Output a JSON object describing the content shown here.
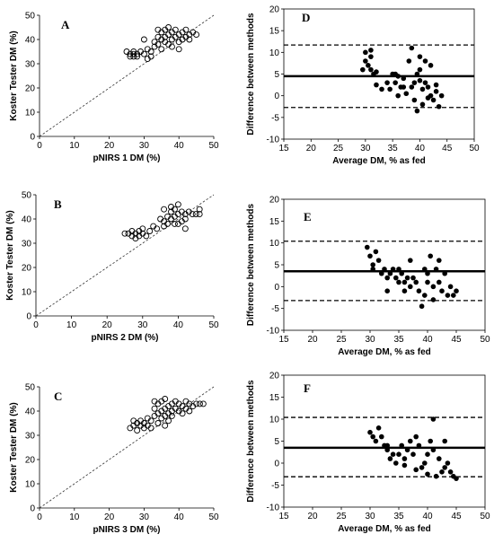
{
  "chart_data": [
    {
      "panel": "A",
      "type": "scatter",
      "xlabel": "pNIRS 1 DM (%)",
      "ylabel": "Koster Tester DM (%)",
      "xlim": [
        0,
        50
      ],
      "ylim": [
        0,
        50
      ],
      "xticks": [
        "0",
        "10",
        "20",
        "30",
        "40",
        "50"
      ],
      "yticks": [
        "0",
        "10",
        "20",
        "30",
        "40",
        "50"
      ],
      "marker": "open-circle",
      "reference_line": "1:1 dashed",
      "points": [
        [
          25,
          35
        ],
        [
          26,
          34
        ],
        [
          26,
          33
        ],
        [
          27,
          35
        ],
        [
          27,
          34
        ],
        [
          27,
          33
        ],
        [
          28,
          34
        ],
        [
          28,
          33
        ],
        [
          29,
          35
        ],
        [
          30,
          34
        ],
        [
          31,
          32
        ],
        [
          31,
          36
        ],
        [
          32,
          33
        ],
        [
          32,
          35
        ],
        [
          33,
          37
        ],
        [
          33,
          39
        ],
        [
          34,
          38
        ],
        [
          34,
          41
        ],
        [
          34,
          44
        ],
        [
          35,
          36
        ],
        [
          35,
          40
        ],
        [
          35,
          43
        ],
        [
          36,
          39
        ],
        [
          36,
          41
        ],
        [
          36,
          44
        ],
        [
          37,
          38
        ],
        [
          37,
          42
        ],
        [
          37,
          45
        ],
        [
          38,
          40
        ],
        [
          38,
          43
        ],
        [
          38,
          37
        ],
        [
          39,
          41
        ],
        [
          39,
          44
        ],
        [
          40,
          39
        ],
        [
          40,
          42
        ],
        [
          40,
          36
        ],
        [
          41,
          40
        ],
        [
          41,
          43
        ],
        [
          42,
          41
        ],
        [
          42,
          44
        ],
        [
          43,
          42
        ],
        [
          43,
          40
        ],
        [
          44,
          43
        ],
        [
          45,
          42
        ],
        [
          30,
          40
        ]
      ]
    },
    {
      "panel": "D",
      "type": "scatter",
      "xlabel": "Average DM, % as fed",
      "ylabel": "Difference between methods",
      "xlim": [
        15,
        50
      ],
      "ylim": [
        -10,
        20
      ],
      "xticks": [
        "15",
        "20",
        "25",
        "30",
        "35",
        "40",
        "45",
        "50"
      ],
      "yticks": [
        "-10",
        "-5",
        "0",
        "5",
        "10",
        "15",
        "20"
      ],
      "marker": "filled-circle",
      "mean_line": 4.5,
      "upper_limit": 11.7,
      "lower_limit": -2.7,
      "points": [
        [
          29.5,
          6
        ],
        [
          30,
          10
        ],
        [
          30,
          8
        ],
        [
          30.5,
          7
        ],
        [
          31,
          10.5
        ],
        [
          31,
          9
        ],
        [
          31,
          6
        ],
        [
          32,
          5.5
        ],
        [
          32,
          2.5
        ],
        [
          33,
          1.5
        ],
        [
          34,
          3
        ],
        [
          34.5,
          1.5
        ],
        [
          35,
          5
        ],
        [
          35.5,
          3
        ],
        [
          35.5,
          5
        ],
        [
          36,
          4.5
        ],
        [
          36.5,
          2
        ],
        [
          37,
          4
        ],
        [
          37.5,
          0.5
        ],
        [
          38,
          8
        ],
        [
          38.5,
          11
        ],
        [
          38.5,
          2
        ],
        [
          39,
          3
        ],
        [
          39,
          -1
        ],
        [
          39.5,
          5
        ],
        [
          39.5,
          -3.5
        ],
        [
          40,
          6
        ],
        [
          40,
          9
        ],
        [
          40.5,
          -2
        ],
        [
          40.5,
          1.5
        ],
        [
          41,
          3
        ],
        [
          41,
          8
        ],
        [
          41.5,
          -0.5
        ],
        [
          41.5,
          2
        ],
        [
          42,
          7
        ],
        [
          42,
          0
        ],
        [
          42.5,
          -1
        ],
        [
          43,
          1
        ],
        [
          43,
          2.5
        ],
        [
          43.5,
          -2.5
        ],
        [
          44,
          0
        ],
        [
          40,
          3.5
        ],
        [
          36,
          0
        ],
        [
          31.5,
          5
        ],
        [
          37,
          2
        ]
      ]
    },
    {
      "panel": "B",
      "type": "scatter",
      "xlabel": "pNIRS 2 DM (%)",
      "ylabel": "Koster Tester DM (%)",
      "xlim": [
        0,
        50
      ],
      "ylim": [
        0,
        50
      ],
      "xticks": [
        "0",
        "10",
        "20",
        "30",
        "40",
        "50"
      ],
      "yticks": [
        "0",
        "10",
        "20",
        "30",
        "40",
        "50"
      ],
      "marker": "open-circle",
      "reference_line": "1:1 dashed",
      "points": [
        [
          25,
          34
        ],
        [
          26,
          34
        ],
        [
          27,
          33
        ],
        [
          27,
          35
        ],
        [
          28,
          34
        ],
        [
          28,
          32
        ],
        [
          29,
          33
        ],
        [
          29,
          35
        ],
        [
          30,
          34
        ],
        [
          30,
          36
        ],
        [
          31,
          33
        ],
        [
          32,
          35
        ],
        [
          33,
          37
        ],
        [
          34,
          36
        ],
        [
          35,
          40
        ],
        [
          36,
          37
        ],
        [
          36,
          39
        ],
        [
          37,
          41
        ],
        [
          37,
          38
        ],
        [
          38,
          43
        ],
        [
          38,
          40
        ],
        [
          38,
          45
        ],
        [
          39,
          44
        ],
        [
          39,
          41
        ],
        [
          40,
          46
        ],
        [
          40,
          42
        ],
        [
          40,
          38
        ],
        [
          41,
          39
        ],
        [
          41,
          43
        ],
        [
          42,
          42
        ],
        [
          42,
          40
        ],
        [
          43,
          43
        ],
        [
          44,
          42
        ],
        [
          45,
          42
        ],
        [
          46,
          44
        ],
        [
          46,
          42
        ],
        [
          36,
          44
        ],
        [
          39,
          38
        ],
        [
          42,
          36
        ]
      ]
    },
    {
      "panel": "E",
      "type": "scatter",
      "xlabel": "Average DM, % as fed",
      "ylabel": "Difference between methods",
      "xlim": [
        15,
        50
      ],
      "ylim": [
        -10,
        20
      ],
      "xticks": [
        "15",
        "20",
        "25",
        "30",
        "35",
        "40",
        "45",
        "50"
      ],
      "yticks": [
        "-10",
        "-5",
        "0",
        "5",
        "10",
        "15",
        "20"
      ],
      "marker": "filled-circle",
      "mean_line": 3.5,
      "upper_limit": 10.4,
      "lower_limit": -3.2,
      "points": [
        [
          29.5,
          9
        ],
        [
          30,
          7
        ],
        [
          30.5,
          5
        ],
        [
          30.5,
          4
        ],
        [
          31,
          8
        ],
        [
          31.5,
          6
        ],
        [
          32,
          3
        ],
        [
          32.5,
          4
        ],
        [
          33,
          2
        ],
        [
          33.5,
          3
        ],
        [
          34,
          4
        ],
        [
          34.5,
          2
        ],
        [
          35,
          1
        ],
        [
          35,
          4
        ],
        [
          35.5,
          3
        ],
        [
          36,
          1
        ],
        [
          36.5,
          2
        ],
        [
          37,
          0
        ],
        [
          37,
          6
        ],
        [
          37.5,
          2
        ],
        [
          38,
          1
        ],
        [
          38.5,
          -1
        ],
        [
          39,
          -4.5
        ],
        [
          39.5,
          4
        ],
        [
          39.5,
          -2
        ],
        [
          40,
          3
        ],
        [
          40.5,
          7
        ],
        [
          41,
          -3
        ],
        [
          41,
          0
        ],
        [
          41.5,
          4
        ],
        [
          42,
          6
        ],
        [
          42,
          1
        ],
        [
          42.5,
          -1
        ],
        [
          43,
          3
        ],
        [
          43.5,
          -2
        ],
        [
          44,
          0
        ],
        [
          44.5,
          -2
        ],
        [
          45,
          -1
        ],
        [
          40,
          1
        ],
        [
          36,
          -1
        ],
        [
          33,
          -1
        ]
      ]
    },
    {
      "panel": "C",
      "type": "scatter",
      "xlabel": "pNIRS 3 DM (%)",
      "ylabel": "Koster Tester DM (%)",
      "xlim": [
        0,
        50
      ],
      "ylim": [
        0,
        50
      ],
      "xticks": [
        "0",
        "10",
        "20",
        "30",
        "40",
        "50"
      ],
      "yticks": [
        "0",
        "10",
        "20",
        "30",
        "40",
        "50"
      ],
      "marker": "open-circle",
      "reference_line": "1:1 dashed",
      "points": [
        [
          26,
          33
        ],
        [
          27,
          34
        ],
        [
          27,
          36
        ],
        [
          28,
          35
        ],
        [
          28,
          32
        ],
        [
          29,
          34
        ],
        [
          29,
          36
        ],
        [
          30,
          33
        ],
        [
          30,
          35
        ],
        [
          31,
          34
        ],
        [
          31,
          37
        ],
        [
          32,
          33
        ],
        [
          32,
          36
        ],
        [
          33,
          38
        ],
        [
          33,
          41
        ],
        [
          34,
          35
        ],
        [
          34,
          39
        ],
        [
          34,
          43
        ],
        [
          35,
          37
        ],
        [
          35,
          40
        ],
        [
          35,
          44
        ],
        [
          36,
          38
        ],
        [
          36,
          41
        ],
        [
          36,
          45
        ],
        [
          37,
          39
        ],
        [
          37,
          42
        ],
        [
          37,
          36
        ],
        [
          38,
          40
        ],
        [
          38,
          43
        ],
        [
          38,
          38
        ],
        [
          39,
          41
        ],
        [
          39,
          44
        ],
        [
          40,
          40
        ],
        [
          40,
          43
        ],
        [
          41,
          42
        ],
        [
          41,
          39
        ],
        [
          42,
          44
        ],
        [
          42,
          41
        ],
        [
          43,
          40
        ],
        [
          43,
          43
        ],
        [
          44,
          42
        ],
        [
          45,
          43
        ],
        [
          46,
          43
        ],
        [
          47,
          43
        ],
        [
          33,
          44
        ],
        [
          36,
          34
        ]
      ]
    },
    {
      "panel": "F",
      "type": "scatter",
      "xlabel": "Average DM, % as fed",
      "ylabel": "Difference between methods",
      "xlim": [
        15,
        50
      ],
      "ylim": [
        -10,
        20
      ],
      "xticks": [
        "15",
        "20",
        "25",
        "30",
        "35",
        "40",
        "45",
        "50"
      ],
      "yticks": [
        "-10",
        "-5",
        "0",
        "5",
        "10",
        "15",
        "20"
      ],
      "marker": "filled-circle",
      "mean_line": 3.5,
      "upper_limit": 10.4,
      "lower_limit": -3.1,
      "points": [
        [
          30,
          7
        ],
        [
          30.5,
          6
        ],
        [
          31,
          5
        ],
        [
          31.5,
          8
        ],
        [
          32,
          6
        ],
        [
          32.5,
          4
        ],
        [
          33,
          3
        ],
        [
          33.5,
          1
        ],
        [
          34,
          2
        ],
        [
          34.5,
          0
        ],
        [
          35,
          2
        ],
        [
          35.5,
          4
        ],
        [
          36,
          1
        ],
        [
          36.5,
          3
        ],
        [
          37,
          5
        ],
        [
          37.5,
          2
        ],
        [
          38,
          6
        ],
        [
          38.5,
          4
        ],
        [
          39,
          -1
        ],
        [
          39.5,
          0
        ],
        [
          40,
          2
        ],
        [
          40.5,
          5
        ],
        [
          41,
          10
        ],
        [
          41,
          3
        ],
        [
          41.5,
          -3
        ],
        [
          42,
          1
        ],
        [
          42.5,
          -2
        ],
        [
          43,
          5
        ],
        [
          43,
          -1
        ],
        [
          43.5,
          0
        ],
        [
          44,
          -2
        ],
        [
          44.5,
          -3
        ],
        [
          45,
          -3.5
        ],
        [
          40,
          -2.5
        ],
        [
          36,
          -0.5
        ],
        [
          33,
          4
        ],
        [
          38,
          -1.5
        ]
      ]
    }
  ]
}
